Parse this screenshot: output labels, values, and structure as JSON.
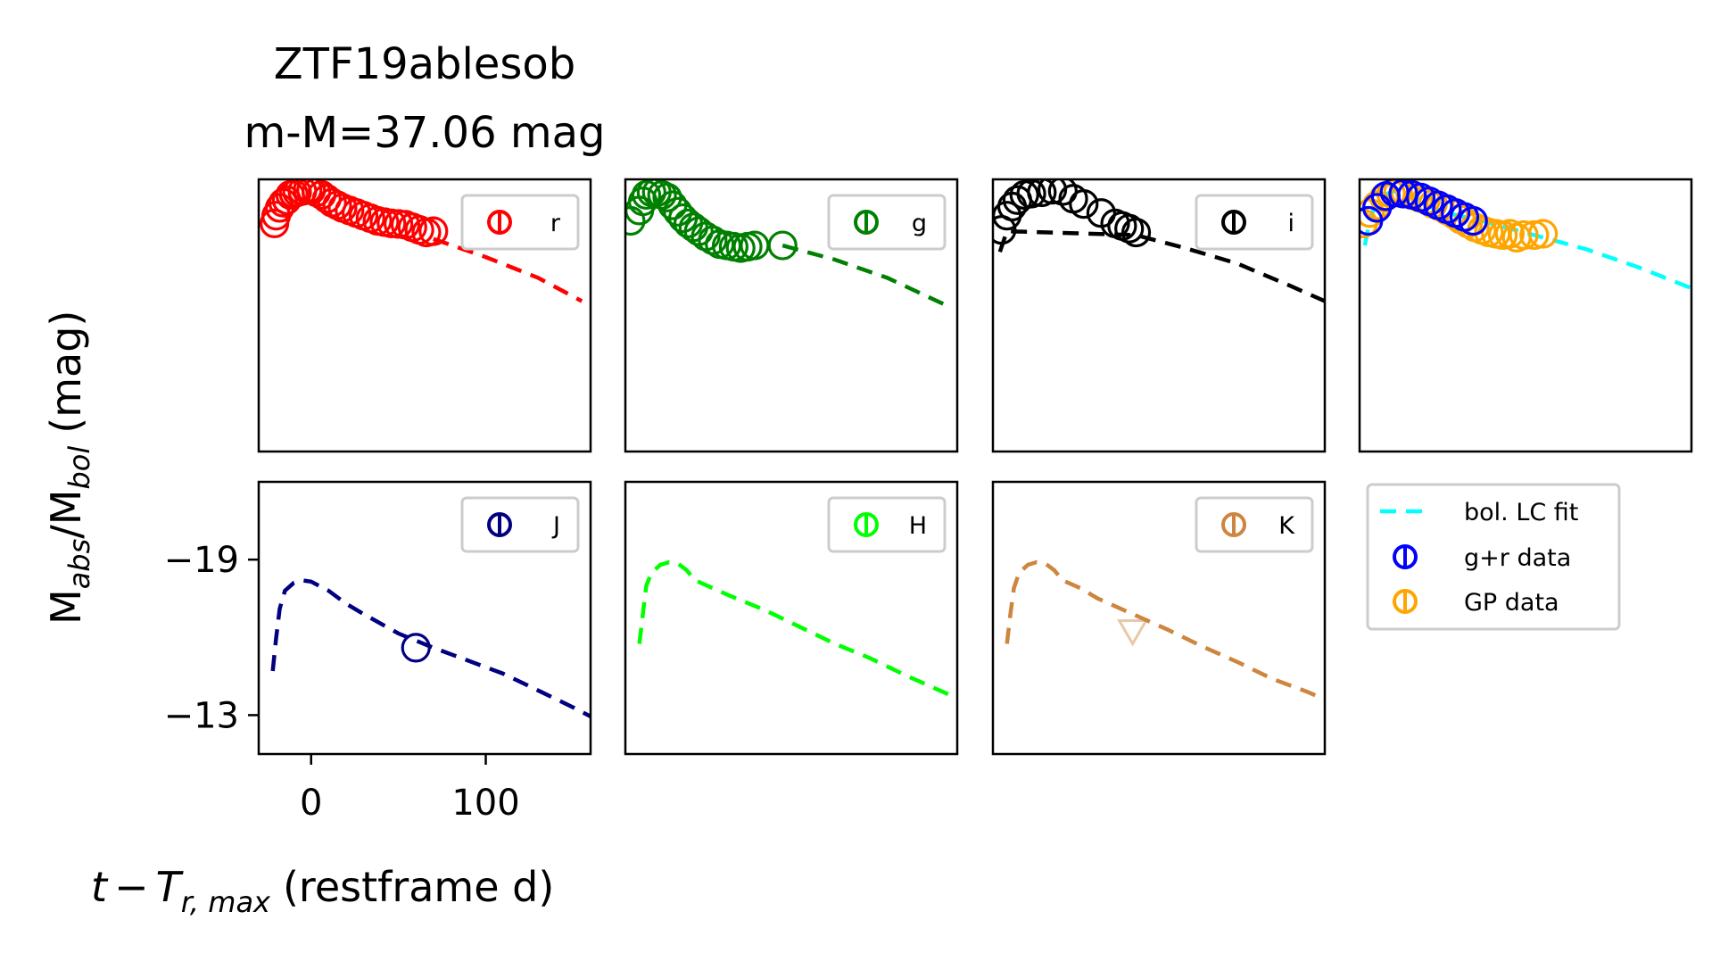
{
  "title_line1": "ZTF19ablesob",
  "title_line2": "m-M=37.06 mag",
  "xlabel_t": "t",
  "xlabel_T": "T",
  "xlabel_sub": "r, max",
  "xlabel_unit": "(restframe d)",
  "ylabel_M1": "M",
  "ylabel_sub1": "abs",
  "ylabel_M2": "/M",
  "ylabel_sub2": "bol",
  "ylabel_unit": "(mag)",
  "colors": {
    "r": "#ff0000",
    "g": "#008000",
    "i": "#000000",
    "J": "#000080",
    "H": "#00ff00",
    "K": "#cd853f",
    "bol": "#00ffff",
    "gr": "#0000ff",
    "gp": "#ffa500"
  },
  "chart_data": {
    "type": "scatter",
    "shared_axes": true,
    "x_unit": "restframe d",
    "y_unit": "mag",
    "xlim": [
      -30,
      160
    ],
    "ylim": [
      -22,
      -11.5
    ],
    "yaxis_inverted": false,
    "xticks": [
      0,
      100
    ],
    "xtick_labels": [
      "0",
      "100"
    ],
    "yticks": [
      -19,
      -13
    ],
    "ytick_labels": [
      "−19",
      "−13"
    ],
    "panels": [
      {
        "band": "r",
        "legend": "r",
        "data": [
          [
            -21,
            -20.3
          ],
          [
            -20,
            -20.6
          ],
          [
            -18,
            -20.9
          ],
          [
            -16,
            -21.1
          ],
          [
            -14,
            -21.2
          ],
          [
            -12,
            -21.4
          ],
          [
            -10,
            -21.45
          ],
          [
            -8,
            -21.5
          ],
          [
            -5,
            -21.55
          ],
          [
            -2,
            -21.6
          ],
          [
            0,
            -21.58
          ],
          [
            3,
            -21.5
          ],
          [
            6,
            -21.4
          ],
          [
            9,
            -21.25
          ],
          [
            12,
            -21.1
          ],
          [
            15,
            -21.0
          ],
          [
            18,
            -20.9
          ],
          [
            22,
            -20.8
          ],
          [
            26,
            -20.7
          ],
          [
            30,
            -20.6
          ],
          [
            34,
            -20.5
          ],
          [
            38,
            -20.4
          ],
          [
            42,
            -20.35
          ],
          [
            46,
            -20.3
          ],
          [
            50,
            -20.28
          ],
          [
            54,
            -20.25
          ],
          [
            58,
            -20.15
          ],
          [
            62,
            -20.05
          ],
          [
            66,
            -19.95
          ],
          [
            70,
            -20.0
          ]
        ],
        "model": [
          [
            70,
            -19.7
          ],
          [
            100,
            -19.0
          ],
          [
            130,
            -18.2
          ],
          [
            155,
            -17.3
          ]
        ],
        "upper_limits": []
      },
      {
        "band": "g",
        "legend": "g",
        "data": [
          [
            -27,
            -20.4
          ],
          [
            -22,
            -20.8
          ],
          [
            -20,
            -21.15
          ],
          [
            -18,
            -21.4
          ],
          [
            -15,
            -21.5
          ],
          [
            -12,
            -21.5
          ],
          [
            -9,
            -21.4
          ],
          [
            -6,
            -21.3
          ],
          [
            -3,
            -21.0
          ],
          [
            0,
            -20.75
          ],
          [
            3,
            -20.5
          ],
          [
            6,
            -20.3
          ],
          [
            9,
            -20.15
          ],
          [
            12,
            -20.0
          ],
          [
            16,
            -19.8
          ],
          [
            20,
            -19.65
          ],
          [
            24,
            -19.5
          ],
          [
            28,
            -19.45
          ],
          [
            32,
            -19.4
          ],
          [
            36,
            -19.35
          ],
          [
            40,
            -19.4
          ],
          [
            44,
            -19.45
          ],
          [
            60,
            -19.45
          ]
        ],
        "model": [
          [
            60,
            -19.45
          ],
          [
            90,
            -18.9
          ],
          [
            120,
            -18.2
          ],
          [
            155,
            -17.1
          ]
        ],
        "upper_limits": []
      },
      {
        "band": "i",
        "legend": "i",
        "data": [
          [
            -25,
            -20.05
          ],
          [
            -22,
            -20.6
          ],
          [
            -19,
            -20.95
          ],
          [
            -16,
            -21.2
          ],
          [
            -12,
            -21.4
          ],
          [
            -8,
            -21.45
          ],
          [
            -2,
            -21.5
          ],
          [
            4,
            -21.6
          ],
          [
            10,
            -21.55
          ],
          [
            16,
            -21.25
          ],
          [
            22,
            -21.05
          ],
          [
            32,
            -20.7
          ],
          [
            40,
            -20.3
          ],
          [
            44,
            -20.2
          ],
          [
            48,
            -20.1
          ],
          [
            52,
            -19.95
          ]
        ],
        "model": [
          [
            -26,
            -19.2
          ],
          [
            -22,
            -20.0
          ],
          [
            52,
            -19.85
          ],
          [
            80,
            -19.35
          ],
          [
            110,
            -18.75
          ],
          [
            140,
            -17.9
          ],
          [
            160,
            -17.3
          ]
        ],
        "upper_limits": []
      },
      {
        "band": "bol",
        "legend_in_panel": false,
        "gr_data": [
          [
            -25,
            -20.4
          ],
          [
            -20,
            -20.9
          ],
          [
            -15,
            -21.35
          ],
          [
            -10,
            -21.5
          ],
          [
            -5,
            -21.45
          ],
          [
            0,
            -21.4
          ],
          [
            5,
            -21.3
          ],
          [
            10,
            -21.15
          ],
          [
            15,
            -21.0
          ],
          [
            20,
            -20.85
          ],
          [
            25,
            -20.7
          ],
          [
            30,
            -20.55
          ],
          [
            35,
            -20.4
          ]
        ],
        "gp_data": [
          [
            -28,
            -20.3
          ],
          [
            -24,
            -20.7
          ],
          [
            -20,
            -21.0
          ],
          [
            -16,
            -21.3
          ],
          [
            -12,
            -21.45
          ],
          [
            -8,
            -21.5
          ],
          [
            -4,
            -21.5
          ],
          [
            0,
            -21.4
          ],
          [
            4,
            -21.3
          ],
          [
            8,
            -21.2
          ],
          [
            12,
            -21.05
          ],
          [
            16,
            -20.95
          ],
          [
            20,
            -20.8
          ],
          [
            24,
            -20.65
          ],
          [
            28,
            -20.45
          ],
          [
            32,
            -20.3
          ],
          [
            36,
            -20.15
          ],
          [
            40,
            -20.05
          ],
          [
            44,
            -19.95
          ],
          [
            48,
            -19.9
          ],
          [
            52,
            -19.85
          ],
          [
            56,
            -19.9
          ],
          [
            60,
            -19.75
          ],
          [
            64,
            -19.85
          ],
          [
            70,
            -19.85
          ],
          [
            75,
            -19.9
          ]
        ],
        "model": [
          [
            -27,
            -19.45
          ],
          [
            -24,
            -20.5
          ],
          [
            -20,
            -21.15
          ],
          [
            -14,
            -21.45
          ],
          [
            -10,
            -21.55
          ],
          [
            -5,
            -21.5
          ],
          [
            0,
            -21.35
          ],
          [
            10,
            -20.95
          ],
          [
            20,
            -20.7
          ],
          [
            40,
            -20.4
          ],
          [
            70,
            -19.85
          ],
          [
            100,
            -19.3
          ],
          [
            130,
            -18.6
          ],
          [
            160,
            -17.8
          ]
        ]
      },
      {
        "band": "J",
        "legend": "J",
        "data": [
          [
            60,
            -15.6
          ]
        ],
        "model": [
          [
            -22,
            -14.7
          ],
          [
            -20,
            -16.0
          ],
          [
            -18,
            -17.1
          ],
          [
            -15,
            -17.8
          ],
          [
            -10,
            -18.1
          ],
          [
            -5,
            -18.2
          ],
          [
            0,
            -18.15
          ],
          [
            10,
            -17.8
          ],
          [
            20,
            -17.3
          ],
          [
            30,
            -16.9
          ],
          [
            50,
            -16.15
          ],
          [
            70,
            -15.6
          ],
          [
            90,
            -15.1
          ],
          [
            110,
            -14.6
          ],
          [
            130,
            -13.95
          ],
          [
            150,
            -13.3
          ],
          [
            160,
            -12.95
          ]
        ],
        "upper_limits": []
      },
      {
        "band": "H",
        "legend": "H",
        "data": [],
        "model": [
          [
            -22,
            -15.75
          ],
          [
            -20,
            -16.9
          ],
          [
            -18,
            -18.0
          ],
          [
            -15,
            -18.5
          ],
          [
            -10,
            -18.8
          ],
          [
            -5,
            -18.9
          ],
          [
            0,
            -18.85
          ],
          [
            5,
            -18.6
          ],
          [
            10,
            -18.2
          ],
          [
            20,
            -17.9
          ],
          [
            30,
            -17.6
          ],
          [
            50,
            -17.05
          ],
          [
            70,
            -16.4
          ],
          [
            90,
            -15.75
          ],
          [
            110,
            -15.2
          ],
          [
            130,
            -14.55
          ],
          [
            150,
            -13.95
          ],
          [
            160,
            -13.65
          ]
        ],
        "upper_limits": []
      },
      {
        "band": "K",
        "legend": "K",
        "data": [],
        "model": [
          [
            -22,
            -15.75
          ],
          [
            -20,
            -16.9
          ],
          [
            -18,
            -17.9
          ],
          [
            -15,
            -18.5
          ],
          [
            -10,
            -18.8
          ],
          [
            -5,
            -18.9
          ],
          [
            0,
            -18.85
          ],
          [
            5,
            -18.6
          ],
          [
            10,
            -18.2
          ],
          [
            20,
            -17.9
          ],
          [
            30,
            -17.5
          ],
          [
            50,
            -16.9
          ],
          [
            70,
            -16.3
          ],
          [
            90,
            -15.65
          ],
          [
            110,
            -15.05
          ],
          [
            130,
            -14.4
          ],
          [
            150,
            -13.9
          ],
          [
            160,
            -13.6
          ]
        ],
        "upper_limits": [
          [
            50,
            -16.2
          ]
        ]
      }
    ],
    "legend": {
      "entries": [
        "bol. LC fit",
        "g+r data",
        "GP data"
      ],
      "placement": "below-right panel"
    }
  }
}
